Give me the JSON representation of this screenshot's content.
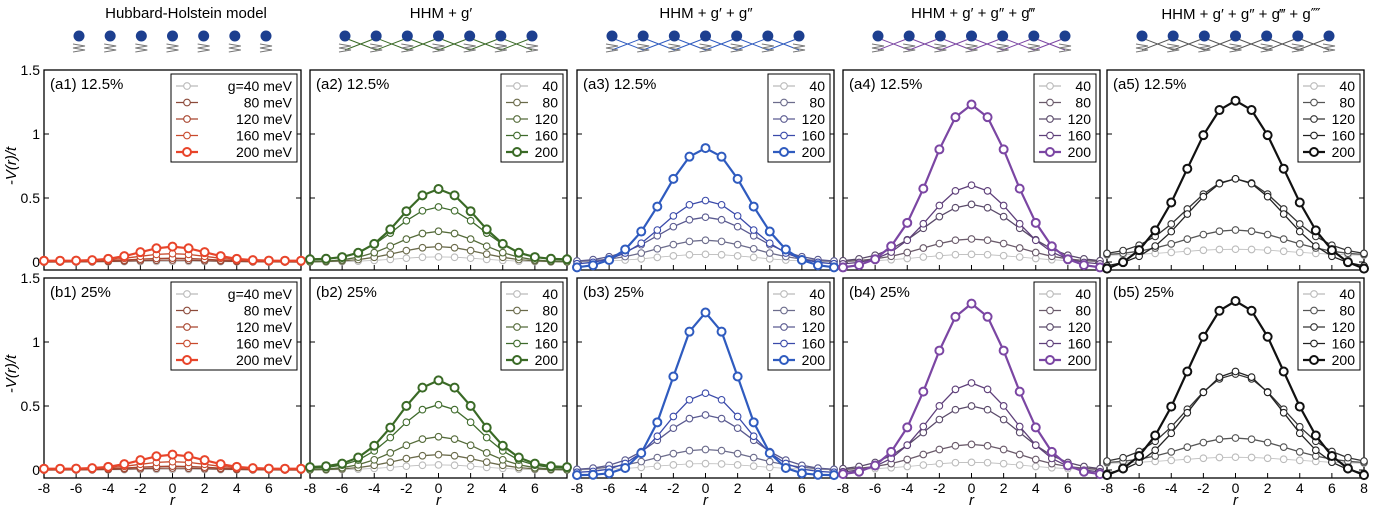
{
  "column_titles": [
    "Hubbard-Holstein model",
    "HHM + g′",
    "HHM + g′ + g″",
    "HHM + g′ + g″ + g‴",
    "HHM + g′ + g″ + g‴ + g⁗"
  ],
  "ylabel": "-V(r)/t",
  "xlabel": "r",
  "x_ticks": [
    "-8",
    "-6",
    "-4",
    "-2",
    "0",
    "2",
    "4",
    "6",
    "8"
  ],
  "y_ticks": [
    "0",
    "0.5",
    "1",
    "1.5"
  ],
  "legend_long": [
    "g=40 meV",
    "80 meV",
    "120 meV",
    "160 meV",
    "200 meV"
  ],
  "legend_short": [
    "40",
    "80",
    "120",
    "160",
    "200"
  ],
  "colors": {
    "red": [
      "#bbbbbb",
      "#8c4a3a",
      "#a8452e",
      "#c94a2d",
      "#e8442a"
    ],
    "green": [
      "#bbbbbb",
      "#6a6a4a",
      "#556b3a",
      "#3f6b2c",
      "#3a6a26"
    ],
    "blue": [
      "#bbbbbb",
      "#6c6c8c",
      "#5a5a90",
      "#3a4aaa",
      "#2f5bbf"
    ],
    "purple": [
      "#bbbbbb",
      "#6a5a6a",
      "#5a4a6a",
      "#5e3f7a",
      "#7b46a3"
    ],
    "black": [
      "#bbbbbb",
      "#555555",
      "#333333",
      "#222222",
      "#111111"
    ]
  },
  "chart_data": [
    {
      "type": "line",
      "panel": "(a1) 12.5%",
      "color_key": "red",
      "legend": "long",
      "xlim": [
        -8,
        8
      ],
      "ylim": [
        0,
        1.5
      ],
      "x": [
        -8,
        -7,
        -6,
        -5,
        -4,
        -3,
        -2,
        -1,
        0,
        1,
        2,
        3,
        4,
        5,
        6,
        7,
        8
      ],
      "series": [
        {
          "name": "g=40 meV",
          "gaussian": [
            0.005,
            2.5,
            0
          ]
        },
        {
          "name": "80 meV",
          "gaussian": [
            0.015,
            2.5,
            0
          ]
        },
        {
          "name": "120 meV",
          "gaussian": [
            0.03,
            2.5,
            0
          ]
        },
        {
          "name": "160 meV",
          "gaussian": [
            0.06,
            2.2,
            0.005
          ]
        },
        {
          "name": "200 meV",
          "gaussian": [
            0.11,
            2.0,
            0.01
          ]
        }
      ]
    },
    {
      "type": "line",
      "panel": "(a2) 12.5%",
      "color_key": "green",
      "legend": "short",
      "xlim": [
        -8,
        8
      ],
      "ylim": [
        0,
        1.5
      ],
      "x": [
        -8,
        -7,
        -6,
        -5,
        -4,
        -3,
        -2,
        -1,
        0,
        1,
        2,
        3,
        4,
        5,
        6,
        7,
        8
      ],
      "series": [
        {
          "name": "40",
          "gaussian": [
            0.04,
            2.6,
            0
          ]
        },
        {
          "name": "80",
          "gaussian": [
            0.12,
            2.6,
            0
          ]
        },
        {
          "name": "120",
          "gaussian": [
            0.24,
            2.6,
            0
          ]
        },
        {
          "name": "160",
          "gaussian": [
            0.42,
            2.6,
            0.01
          ]
        },
        {
          "name": "200",
          "gaussian": [
            0.55,
            2.3,
            0.02
          ]
        }
      ]
    },
    {
      "type": "line",
      "panel": "(a3) 12.5%",
      "color_key": "blue",
      "legend": "short",
      "xlim": [
        -8,
        8
      ],
      "ylim": [
        0,
        1.5
      ],
      "x": [
        -8,
        -7,
        -6,
        -5,
        -4,
        -3,
        -2,
        -1,
        0,
        1,
        2,
        3,
        4,
        5,
        6,
        7,
        8
      ],
      "series": [
        {
          "name": "40",
          "gaussian": [
            0.06,
            3.0,
            0
          ]
        },
        {
          "name": "80",
          "gaussian": [
            0.17,
            3.0,
            0
          ]
        },
        {
          "name": "120",
          "gaussian": [
            0.35,
            2.9,
            0
          ]
        },
        {
          "name": "160",
          "gaussian": [
            0.5,
            2.7,
            -0.02
          ]
        },
        {
          "name": "200",
          "gaussian": [
            0.94,
            2.6,
            -0.05
          ]
        }
      ]
    },
    {
      "type": "line",
      "panel": "(a4) 12.5%",
      "color_key": "purple",
      "legend": "short",
      "xlim": [
        -8,
        8
      ],
      "ylim": [
        0,
        1.5
      ],
      "x": [
        -8,
        -7,
        -6,
        -5,
        -4,
        -3,
        -2,
        -1,
        0,
        1,
        2,
        3,
        4,
        5,
        6,
        7,
        8
      ],
      "series": [
        {
          "name": "40",
          "gaussian": [
            0.06,
            3.2,
            0
          ]
        },
        {
          "name": "80",
          "gaussian": [
            0.18,
            3.0,
            0
          ]
        },
        {
          "name": "120",
          "gaussian": [
            0.45,
            2.9,
            0
          ]
        },
        {
          "name": "160",
          "gaussian": [
            0.62,
            2.6,
            -0.02
          ]
        },
        {
          "name": "200",
          "gaussian": [
            1.28,
            2.5,
            -0.05
          ]
        }
      ]
    },
    {
      "type": "line",
      "panel": "(a5) 12.5%",
      "color_key": "black",
      "legend": "short",
      "xlim": [
        -8,
        8
      ],
      "ylim": [
        0,
        1.5
      ],
      "x": [
        -8,
        -7,
        -6,
        -5,
        -4,
        -3,
        -2,
        -1,
        0,
        1,
        2,
        3,
        4,
        5,
        6,
        7,
        8
      ],
      "series": [
        {
          "name": "40",
          "gaussian": [
            0.05,
            3.4,
            0.05
          ]
        },
        {
          "name": "80",
          "gaussian": [
            0.2,
            3.2,
            0.05
          ]
        },
        {
          "name": "120",
          "gaussian": [
            0.6,
            3.0,
            0.05
          ]
        },
        {
          "name": "160",
          "gaussian": [
            0.7,
            3.0,
            -0.05
          ]
        },
        {
          "name": "200",
          "gaussian": [
            1.35,
            3.0,
            -0.09
          ]
        }
      ]
    },
    {
      "type": "line",
      "panel": "(b1) 25%",
      "color_key": "red",
      "legend": "long",
      "xlim": [
        -8,
        8
      ],
      "ylim": [
        0,
        1.5
      ],
      "x": [
        -8,
        -7,
        -6,
        -5,
        -4,
        -3,
        -2,
        -1,
        0,
        1,
        2,
        3,
        4,
        5,
        6,
        7,
        8
      ],
      "series": [
        {
          "name": "g=40 meV",
          "gaussian": [
            0.005,
            2.5,
            0
          ]
        },
        {
          "name": "80 meV",
          "gaussian": [
            0.015,
            2.5,
            0
          ]
        },
        {
          "name": "120 meV",
          "gaussian": [
            0.03,
            2.5,
            0
          ]
        },
        {
          "name": "160 meV",
          "gaussian": [
            0.06,
            2.2,
            0.005
          ]
        },
        {
          "name": "200 meV",
          "gaussian": [
            0.11,
            2.0,
            0.01
          ]
        }
      ]
    },
    {
      "type": "line",
      "panel": "(b2) 25%",
      "color_key": "green",
      "legend": "short",
      "xlim": [
        -8,
        8
      ],
      "ylim": [
        0,
        1.5
      ],
      "x": [
        -8,
        -7,
        -6,
        -5,
        -4,
        -3,
        -2,
        -1,
        0,
        1,
        2,
        3,
        4,
        5,
        6,
        7,
        8
      ],
      "series": [
        {
          "name": "40",
          "gaussian": [
            0.04,
            2.6,
            0
          ]
        },
        {
          "name": "80",
          "gaussian": [
            0.12,
            2.6,
            0
          ]
        },
        {
          "name": "120",
          "gaussian": [
            0.26,
            2.6,
            0
          ]
        },
        {
          "name": "160",
          "gaussian": [
            0.5,
            2.5,
            0.01
          ]
        },
        {
          "name": "200",
          "gaussian": [
            0.68,
            2.4,
            0.02
          ]
        }
      ]
    },
    {
      "type": "line",
      "panel": "(b3) 25%",
      "color_key": "blue",
      "legend": "short",
      "xlim": [
        -8,
        8
      ],
      "ylim": [
        0,
        1.5
      ],
      "x": [
        -8,
        -7,
        -6,
        -5,
        -4,
        -3,
        -2,
        -1,
        0,
        1,
        2,
        3,
        4,
        5,
        6,
        7,
        8
      ],
      "series": [
        {
          "name": "40",
          "gaussian": [
            0.05,
            3.0,
            0
          ]
        },
        {
          "name": "80",
          "gaussian": [
            0.16,
            3.0,
            0
          ]
        },
        {
          "name": "120",
          "gaussian": [
            0.43,
            2.7,
            0
          ]
        },
        {
          "name": "160",
          "gaussian": [
            0.62,
            2.4,
            -0.02
          ]
        },
        {
          "name": "200",
          "gaussian": [
            1.27,
            2.0,
            -0.04
          ]
        }
      ]
    },
    {
      "type": "line",
      "panel": "(b4) 25%",
      "color_key": "purple",
      "legend": "short",
      "xlim": [
        -8,
        8
      ],
      "ylim": [
        0,
        1.5
      ],
      "x": [
        -8,
        -7,
        -6,
        -5,
        -4,
        -3,
        -2,
        -1,
        0,
        1,
        2,
        3,
        4,
        5,
        6,
        7,
        8
      ],
      "series": [
        {
          "name": "40",
          "gaussian": [
            0.06,
            3.2,
            0
          ]
        },
        {
          "name": "80",
          "gaussian": [
            0.2,
            3.0,
            0
          ]
        },
        {
          "name": "120",
          "gaussian": [
            0.5,
            2.9,
            0
          ]
        },
        {
          "name": "160",
          "gaussian": [
            0.7,
            2.6,
            -0.02
          ]
        },
        {
          "name": "200",
          "gaussian": [
            1.34,
            2.5,
            -0.04
          ]
        }
      ]
    },
    {
      "type": "line",
      "panel": "(b5) 25%",
      "color_key": "black",
      "legend": "short",
      "xlim": [
        -8,
        8
      ],
      "ylim": [
        0,
        1.5
      ],
      "x": [
        -8,
        -7,
        -6,
        -5,
        -4,
        -3,
        -2,
        -1,
        0,
        1,
        2,
        3,
        4,
        5,
        6,
        7,
        8
      ],
      "series": [
        {
          "name": "40",
          "gaussian": [
            0.05,
            3.4,
            0.05
          ]
        },
        {
          "name": "80",
          "gaussian": [
            0.2,
            3.2,
            0.05
          ]
        },
        {
          "name": "120",
          "gaussian": [
            0.7,
            3.0,
            0.05
          ]
        },
        {
          "name": "160",
          "gaussian": [
            0.82,
            3.0,
            -0.05
          ]
        },
        {
          "name": "200",
          "gaussian": [
            1.4,
            3.0,
            -0.08
          ]
        }
      ]
    }
  ]
}
